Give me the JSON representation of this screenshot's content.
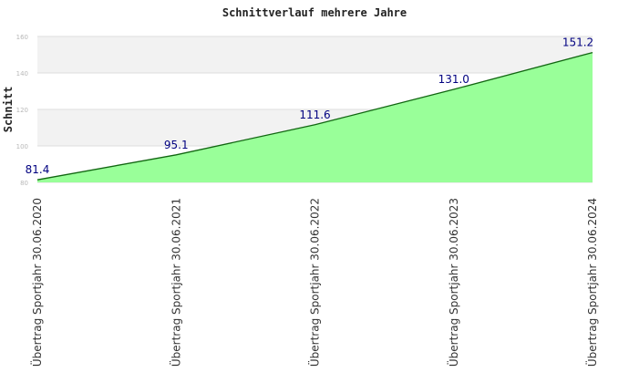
{
  "chart_data": {
    "type": "area",
    "title": "Schnittverlauf mehrere Jahre",
    "xlabel": "",
    "ylabel": "Schnitt",
    "categories": [
      "Übertrag Sportjahr 30.06.2020",
      "Übertrag Sportjahr 30.06.2021",
      "Übertrag Sportjahr 30.06.2022",
      "Übertrag Sportjahr 30.06.2023",
      "Übertrag Sportjahr 30.06.2024"
    ],
    "values": [
      81.4,
      95.1,
      111.6,
      131.0,
      151.2
    ],
    "data_labels": [
      "81.4",
      "95.1",
      "111.6",
      "131.0",
      "151.2"
    ],
    "ylim": [
      80,
      160
    ],
    "yticks": [
      80,
      100,
      120,
      140,
      160
    ],
    "grid": true,
    "legend": "none",
    "colors": {
      "fill": "#99ff99",
      "line": "#116611",
      "band": "#f2f2f2",
      "grid": "#dddddd",
      "data_label": "#000080"
    }
  }
}
